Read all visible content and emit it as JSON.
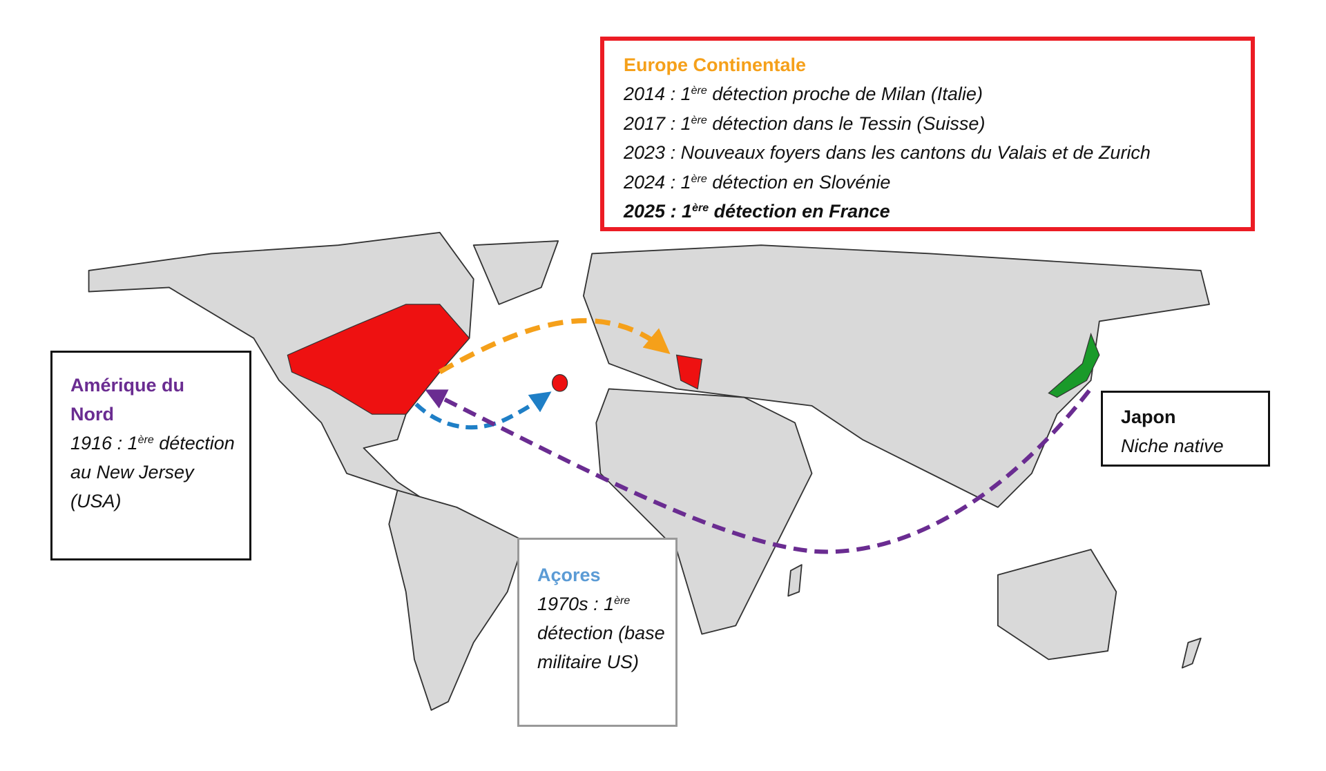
{
  "colors": {
    "land": "#d9d9d9",
    "border": "#333333",
    "infested": "#ee1111",
    "native": "#1a9a2a",
    "europe_arrow": "#f5a01a",
    "azores_arrow": "#1f7fc6",
    "america_arrow": "#6a2c91",
    "europe_box_border": "#ec1c24"
  },
  "europe": {
    "title": "Europe Continentale",
    "lines": [
      {
        "year": "2014 : 1",
        "sup": "ère",
        "text": " détection proche de Milan (Italie)"
      },
      {
        "year": "2017 : 1",
        "sup": "ère",
        "text": " détection dans le Tessin (Suisse)"
      },
      {
        "year": "2023 : Nouveaux foyers dans les cantons du Valais et de Zurich",
        "sup": "",
        "text": ""
      },
      {
        "year": "2024 : 1",
        "sup": "ère",
        "text": " détection en Slovénie"
      },
      {
        "year": "2025 : 1",
        "sup": "ère",
        "text": " détection en France"
      }
    ]
  },
  "north_america": {
    "title": "Amérique du Nord",
    "year": "1916 : 1",
    "sup": "ère",
    "text": " détection au New Jersey (USA)"
  },
  "azores": {
    "title": "Açores",
    "year": "1970s : 1",
    "sup": "ère",
    "text": " détection (base militaire US)"
  },
  "japan": {
    "title": "Japon",
    "text": "Niche native"
  }
}
